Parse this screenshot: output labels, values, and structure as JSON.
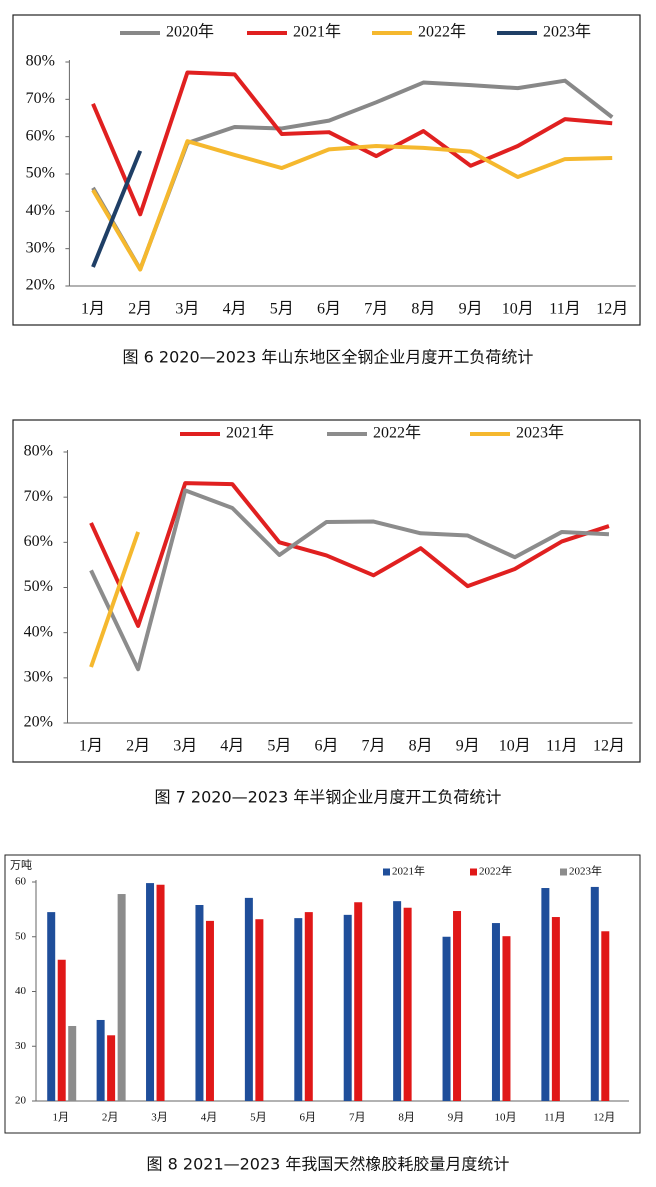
{
  "chart_data": [
    {
      "type": "line",
      "caption": "图 6  2020—2023 年山东地区全钢企业月度开工负荷统计",
      "categories": [
        "1月",
        "2月",
        "3月",
        "4月",
        "5月",
        "6月",
        "7月",
        "8月",
        "9月",
        "10月",
        "11月",
        "12月"
      ],
      "series": [
        {
          "name": "2020年",
          "color": "#888888",
          "values": [
            46.3,
            24.5,
            58.3,
            62.6,
            62.2,
            64.3,
            69.2,
            74.5,
            73.8,
            73.0,
            75.0,
            65.2
          ]
        },
        {
          "name": "2021年",
          "color": "#e02020",
          "values": [
            68.8,
            39.2,
            77.2,
            76.7,
            60.7,
            61.2,
            54.8,
            61.5,
            52.2,
            57.5,
            64.7,
            63.6
          ]
        },
        {
          "name": "2022年",
          "color": "#f5b82e",
          "values": [
            45.7,
            24.4,
            58.8,
            55.1,
            51.6,
            56.6,
            57.5,
            57.0,
            56.0,
            49.2,
            54.0,
            54.3
          ]
        },
        {
          "name": "2023年",
          "color": "#1f3f66",
          "values": [
            25.1,
            56.2,
            null,
            null,
            null,
            null,
            null,
            null,
            null,
            null,
            null,
            null
          ]
        }
      ],
      "ylim": [
        20,
        80
      ],
      "yticks": [
        {
          "value": 20,
          "label": "20%"
        },
        {
          "value": 30,
          "label": "30%"
        },
        {
          "value": 40,
          "label": "40%"
        },
        {
          "value": 50,
          "label": "50%"
        },
        {
          "value": 60,
          "label": "60%"
        },
        {
          "value": 70,
          "label": "70%"
        },
        {
          "value": 80,
          "label": "80%"
        }
      ]
    },
    {
      "type": "line",
      "caption": "图 7    2020—2023 年半钢企业月度开工负荷统计",
      "categories": [
        "1月",
        "2月",
        "3月",
        "4月",
        "5月",
        "6月",
        "7月",
        "8月",
        "9月",
        "10月",
        "11月",
        "12月"
      ],
      "series": [
        {
          "name": "2021年",
          "color": "#e02020",
          "values": [
            64.3,
            41.5,
            73.1,
            72.9,
            60.0,
            57.1,
            52.7,
            58.7,
            50.3,
            54.1,
            60.2,
            63.6
          ]
        },
        {
          "name": "2022年",
          "color": "#8c8c8c",
          "values": [
            53.8,
            31.9,
            71.5,
            67.6,
            57.2,
            64.5,
            64.6,
            62.0,
            61.5,
            56.7,
            62.3,
            61.8
          ]
        },
        {
          "name": "2023年",
          "color": "#f5b82e",
          "values": [
            32.4,
            62.3,
            null,
            null,
            null,
            null,
            null,
            null,
            null,
            null,
            null,
            null
          ]
        }
      ],
      "ylim": [
        20,
        80
      ],
      "yticks": [
        {
          "value": 20,
          "label": "20%"
        },
        {
          "value": 30,
          "label": "30%"
        },
        {
          "value": 40,
          "label": "40%"
        },
        {
          "value": 50,
          "label": "50%"
        },
        {
          "value": 60,
          "label": "60%"
        },
        {
          "value": 70,
          "label": "70%"
        },
        {
          "value": 80,
          "label": "80%"
        }
      ]
    },
    {
      "type": "bar",
      "caption": "图 8  2021—2023 年我国天然橡胶耗胶量月度统计",
      "y_label": "万吨",
      "categories": [
        "1月",
        "2月",
        "3月",
        "4月",
        "5月",
        "6月",
        "7月",
        "8月",
        "9月",
        "10月",
        "11月",
        "12月"
      ],
      "series": [
        {
          "name": "2021年",
          "color": "#1f4e9a",
          "values": [
            54.5,
            34.8,
            59.8,
            55.8,
            57.1,
            53.4,
            54.0,
            56.5,
            50.0,
            52.5,
            58.9,
            59.1
          ]
        },
        {
          "name": "2022年",
          "color": "#e01818",
          "values": [
            45.8,
            32.0,
            59.5,
            52.9,
            53.2,
            54.5,
            56.3,
            55.3,
            54.7,
            50.1,
            53.6,
            51.0
          ]
        },
        {
          "name": "2023年",
          "color": "#8c8c8c",
          "values": [
            33.7,
            57.8,
            null,
            null,
            null,
            null,
            null,
            null,
            null,
            null,
            null,
            null
          ]
        }
      ],
      "ylim": [
        20,
        60
      ],
      "yticks": [
        20,
        30,
        40,
        50,
        60
      ]
    }
  ]
}
